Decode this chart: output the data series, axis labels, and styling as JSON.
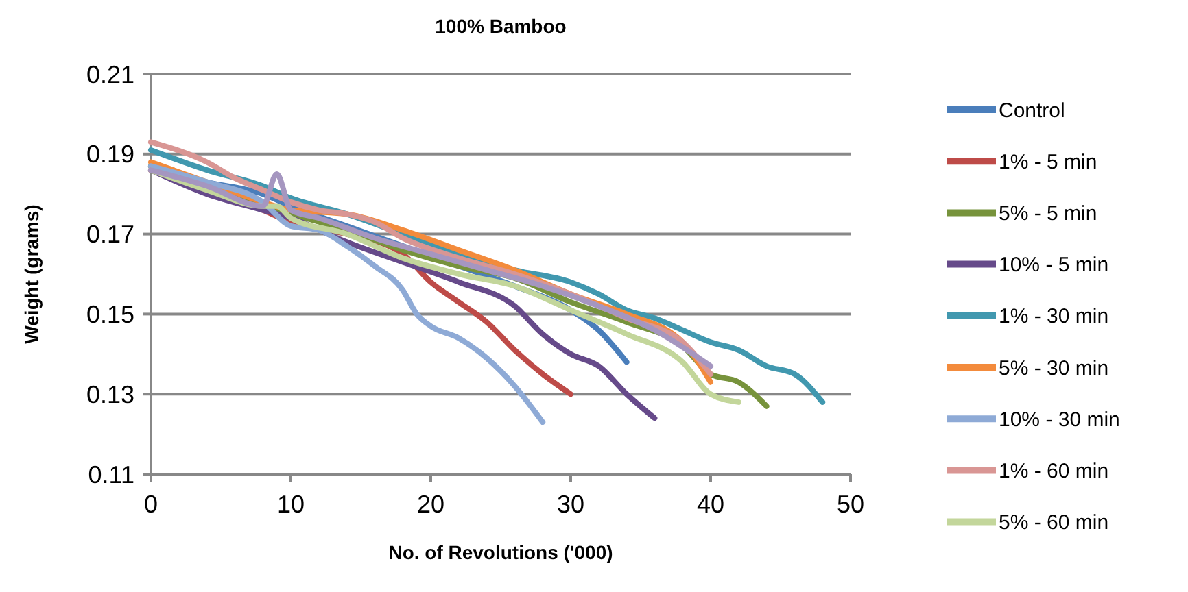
{
  "chart_data": {
    "type": "line",
    "title": "100% Bamboo",
    "xlabel": "No. of Revolutions ('000)",
    "ylabel": "Weight (grams)",
    "xlim": [
      0,
      50
    ],
    "xticks": [
      0,
      10,
      20,
      30,
      40,
      50
    ],
    "ylim": [
      0.11,
      0.21
    ],
    "yticks": [
      0.11,
      0.13,
      0.15,
      0.17,
      0.19,
      0.21
    ],
    "grid": "y",
    "legend": "right",
    "marker": "none",
    "line_style": "solid",
    "series": [
      {
        "name": "Control",
        "color": "#4a7ebb",
        "x": [
          0,
          4,
          8,
          10,
          14,
          18,
          22,
          26,
          30,
          32,
          34
        ],
        "values": [
          0.187,
          0.183,
          0.18,
          0.177,
          0.172,
          0.167,
          0.162,
          0.157,
          0.151,
          0.146,
          0.138
        ]
      },
      {
        "name": "1% - 5 min",
        "color": "#be4b48",
        "x": [
          0,
          4,
          8,
          10,
          14,
          18,
          20,
          22,
          24,
          26,
          28,
          30
        ],
        "values": [
          0.186,
          0.182,
          0.176,
          0.173,
          0.17,
          0.165,
          0.158,
          0.153,
          0.148,
          0.141,
          0.135,
          0.13
        ]
      },
      {
        "name": "5% - 5 min",
        "color": "#77933c",
        "x": [
          0,
          4,
          8,
          10,
          14,
          18,
          22,
          26,
          30,
          34,
          38,
          40,
          42,
          44
        ],
        "values": [
          0.187,
          0.181,
          0.177,
          0.175,
          0.171,
          0.166,
          0.162,
          0.159,
          0.153,
          0.148,
          0.142,
          0.135,
          0.133,
          0.127
        ]
      },
      {
        "name": "10% - 5 min",
        "color": "#664a8a",
        "x": [
          0,
          4,
          8,
          10,
          14,
          18,
          22,
          26,
          28,
          30,
          32,
          34,
          36
        ],
        "values": [
          0.186,
          0.18,
          0.176,
          0.174,
          0.168,
          0.163,
          0.158,
          0.152,
          0.145,
          0.14,
          0.137,
          0.13,
          0.124
        ]
      },
      {
        "name": "1% - 30 min",
        "color": "#4198af",
        "x": [
          0,
          4,
          8,
          10,
          14,
          18,
          22,
          26,
          30,
          32,
          34,
          36,
          38,
          40,
          42,
          44,
          46,
          48
        ],
        "values": [
          0.191,
          0.186,
          0.182,
          0.179,
          0.175,
          0.17,
          0.165,
          0.161,
          0.158,
          0.155,
          0.151,
          0.149,
          0.146,
          0.143,
          0.141,
          0.137,
          0.135,
          0.128
        ]
      },
      {
        "name": "5% - 30 min",
        "color": "#f38b3c",
        "x": [
          0,
          4,
          8,
          10,
          14,
          18,
          22,
          26,
          30,
          34,
          38,
          40
        ],
        "values": [
          0.188,
          0.183,
          0.178,
          0.176,
          0.175,
          0.171,
          0.166,
          0.161,
          0.155,
          0.15,
          0.143,
          0.133
        ]
      },
      {
        "name": "10% - 30 min",
        "color": "#8eaad6",
        "x": [
          0,
          4,
          8,
          10,
          12,
          14,
          16,
          18,
          19,
          20,
          22,
          24,
          26,
          28
        ],
        "values": [
          0.187,
          0.183,
          0.178,
          0.172,
          0.171,
          0.167,
          0.162,
          0.156,
          0.15,
          0.147,
          0.144,
          0.139,
          0.132,
          0.123
        ]
      },
      {
        "name": "1% - 60 min",
        "color": "#d99694",
        "x": [
          0,
          4,
          6,
          8,
          10,
          12,
          14,
          16,
          18,
          22,
          26,
          30,
          34,
          38,
          40
        ],
        "values": [
          0.193,
          0.188,
          0.184,
          0.181,
          0.178,
          0.176,
          0.175,
          0.173,
          0.169,
          0.164,
          0.16,
          0.155,
          0.149,
          0.143,
          0.135
        ]
      },
      {
        "name": "5% - 60 min",
        "color": "#c3d69b",
        "x": [
          0,
          4,
          8,
          9,
          10,
          14,
          18,
          22,
          26,
          30,
          34,
          38,
          40,
          42
        ],
        "values": [
          0.186,
          0.181,
          0.177,
          0.177,
          0.174,
          0.17,
          0.164,
          0.16,
          0.157,
          0.151,
          0.145,
          0.138,
          0.13,
          0.128
        ]
      },
      {
        "color": "#a596c0",
        "x": [
          0,
          4,
          8,
          9,
          10,
          12,
          16,
          20,
          24,
          28,
          32,
          36,
          40
        ],
        "values": [
          0.186,
          0.182,
          0.177,
          0.185,
          0.176,
          0.174,
          0.169,
          0.165,
          0.161,
          0.157,
          0.152,
          0.146,
          0.137
        ]
      }
    ]
  }
}
